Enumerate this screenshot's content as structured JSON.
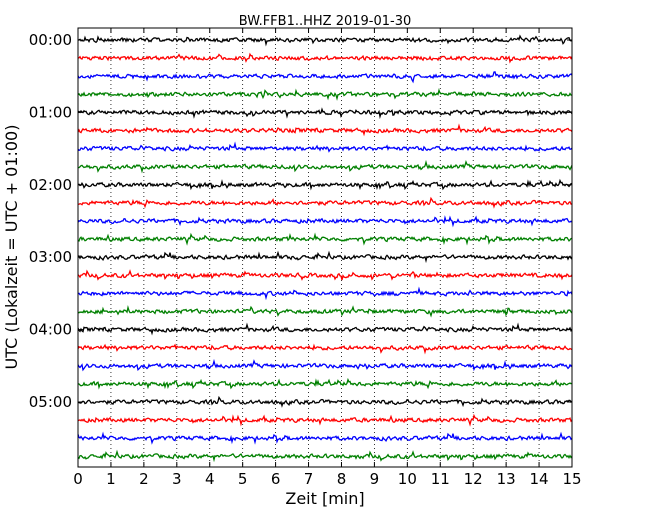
{
  "chart_data": {
    "type": "line",
    "title": "BW.FFB1..HHZ 2019-01-30",
    "xlabel": "Zeit  [min]",
    "ylabel": "UTC (Lokalzeit = UTC + 01:00)",
    "xlim": [
      0,
      15
    ],
    "x_ticks": [
      "0",
      "1",
      "2",
      "3",
      "4",
      "5",
      "6",
      "7",
      "8",
      "9",
      "10",
      "11",
      "12",
      "13",
      "14",
      "15"
    ],
    "y_ticks": [
      "00:00",
      "01:00",
      "02:00",
      "03:00",
      "04:00",
      "05:00"
    ],
    "traces_per_hour": 4,
    "trace_count": 24,
    "trace_colors": [
      "#000000",
      "#ff0000",
      "#0000ff",
      "#008000"
    ],
    "grid": "vertical dotted lines at each minute",
    "legend": "none"
  }
}
